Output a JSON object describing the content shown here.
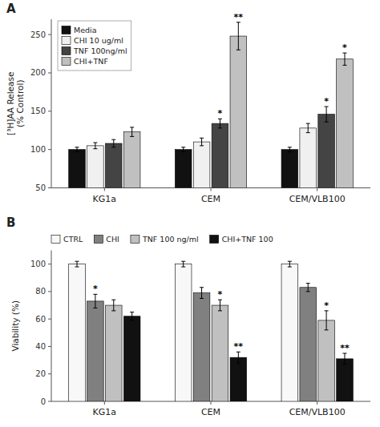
{
  "chart_data": [
    {
      "type": "bar",
      "title": "A",
      "categories": [
        "KG1a",
        "CEM",
        "CEM/VLB100"
      ],
      "y_label": "[³H]AA Release\n(% Control)",
      "ylim": [
        50,
        270
      ],
      "yticks": [
        50,
        100,
        150,
        200,
        250
      ],
      "legend": "upper left",
      "series": [
        {
          "name": "Media",
          "color": "#111111",
          "values": [
            100,
            100,
            100
          ],
          "errors": [
            3,
            3,
            3
          ],
          "significance": [
            null,
            null,
            null
          ]
        },
        {
          "name": "CHI 10 ug/ml",
          "color": "#f0f0f0",
          "values": [
            105,
            110,
            128
          ],
          "errors": [
            4,
            5,
            6
          ],
          "significance": [
            null,
            null,
            null
          ]
        },
        {
          "name": "TNF 100ng/ml",
          "color": "#444444",
          "values": [
            108,
            134,
            146
          ],
          "errors": [
            5,
            6,
            10
          ],
          "significance": [
            null,
            "*",
            "*"
          ]
        },
        {
          "name": "CHI+TNF",
          "color": "#c0c0c0",
          "values": [
            123,
            248,
            218
          ],
          "errors": [
            6,
            18,
            8
          ],
          "significance": [
            null,
            "**",
            "*"
          ]
        }
      ]
    },
    {
      "type": "bar",
      "title": "B",
      "categories": [
        "KG1a",
        "CEM",
        "CEM/VLB100"
      ],
      "y_label": "Viability (%)",
      "ylim": [
        0,
        110
      ],
      "yticks": [
        0,
        20,
        40,
        60,
        80,
        100
      ],
      "legend": "top",
      "series": [
        {
          "name": "CTRL",
          "color": "#f8f8f8",
          "values": [
            100,
            100,
            100
          ],
          "errors": [
            2,
            2,
            2
          ],
          "significance": [
            null,
            null,
            null
          ]
        },
        {
          "name": "CHI",
          "color": "#808080",
          "values": [
            73,
            79,
            83
          ],
          "errors": [
            5,
            4,
            3
          ],
          "significance": [
            "*",
            null,
            null
          ]
        },
        {
          "name": "TNF 100 ng/ml",
          "color": "#c0c0c0",
          "values": [
            70,
            70,
            59
          ],
          "errors": [
            4,
            4,
            7
          ],
          "significance": [
            null,
            "*",
            "*"
          ]
        },
        {
          "name": "CHI+TNF 100",
          "color": "#111111",
          "values": [
            62,
            32,
            31
          ],
          "errors": [
            3,
            4,
            4
          ],
          "significance": [
            null,
            "**",
            "**"
          ]
        }
      ]
    }
  ]
}
